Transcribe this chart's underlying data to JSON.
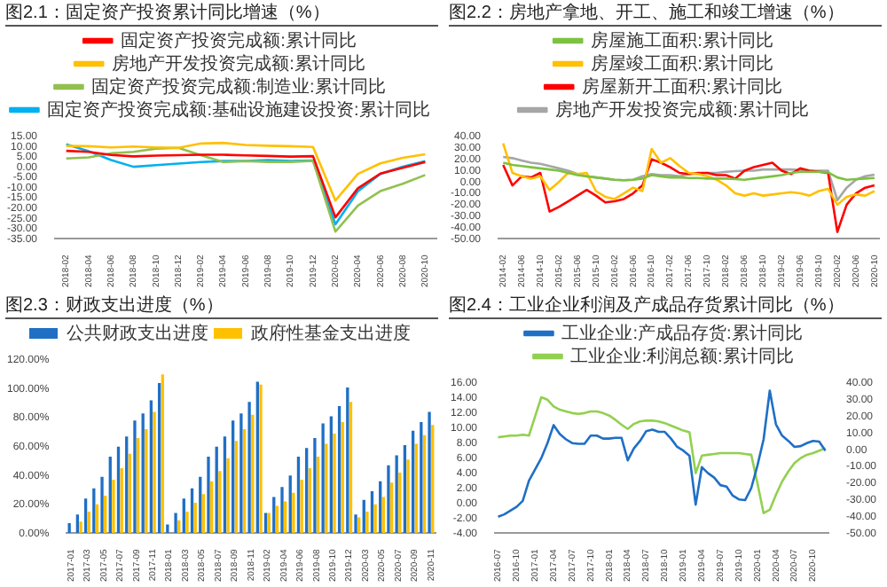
{
  "chart_data": [
    {
      "type": "line",
      "title": "图2.1：固定资产投资累计同比增速（%）",
      "legend": "top",
      "categories": [
        "2018-02",
        "2018-04",
        "2018-06",
        "2018-08",
        "2018-10",
        "2018-12",
        "2019-02",
        "2019-04",
        "2019-06",
        "2019-08",
        "2019-10",
        "2019-12",
        "2020-02",
        "2020-04",
        "2020-06",
        "2020-08",
        "2020-10"
      ],
      "ylim": [
        -35,
        15
      ],
      "yticks": [
        {
          "value": 15,
          "label": "15.00"
        },
        {
          "value": 10,
          "label": "10.00"
        },
        {
          "value": 5,
          "label": "5.00"
        },
        {
          "value": 0,
          "label": "0.00"
        },
        {
          "value": -5,
          "label": "-5.00"
        },
        {
          "value": -10,
          "label": "-10.00"
        },
        {
          "value": -15,
          "label": "-15.00"
        },
        {
          "value": -20,
          "label": "-20.00"
        },
        {
          "value": -25,
          "label": "-25.00"
        },
        {
          "value": -30,
          "label": "-30.00"
        },
        {
          "value": -35,
          "label": "-35.00"
        }
      ],
      "series": [
        {
          "name": "固定资产投资完成额:累计同比",
          "color": "#ff0000",
          "values": [
            8.0,
            7.5,
            6.0,
            5.3,
            5.7,
            5.9,
            6.1,
            6.1,
            5.8,
            5.5,
            5.2,
            5.4,
            -24.5,
            -10.3,
            -3.1,
            -0.3,
            2.5
          ]
        },
        {
          "name": "房地产开发投资完成额:累计同比",
          "color": "#ffc000",
          "values": [
            10.4,
            10.3,
            9.7,
            10.1,
            9.7,
            9.5,
            11.6,
            11.9,
            10.9,
            10.5,
            10.3,
            9.9,
            -16.3,
            -3.3,
            1.9,
            4.6,
            6.3
          ]
        },
        {
          "name": "固定资产投资完成额:制造业:累计同比",
          "color": "#92c050",
          "values": [
            4.3,
            4.8,
            6.8,
            7.5,
            9.1,
            9.5,
            5.9,
            2.5,
            3.0,
            2.6,
            2.6,
            3.1,
            -31.5,
            -18.8,
            -11.7,
            -8.1,
            -3.8
          ]
        },
        {
          "name": "固定资产投资完成额:基础设施建设投资:累计同比",
          "color": "#00b0f0",
          "values": [
            11.2,
            7.8,
            3.5,
            0.2,
            1.0,
            1.8,
            2.5,
            3.0,
            3.0,
            3.5,
            3.0,
            3.3,
            -27.9,
            -11.8,
            -3.3,
            0.3,
            3.0
          ]
        }
      ]
    },
    {
      "type": "line",
      "title": "图2.2：房地产拿地、开工、施工和竣工增速（%）",
      "legend": "top",
      "categories": [
        "2014-02",
        null,
        "2014-06",
        null,
        "2014-10",
        null,
        "2015-02",
        null,
        "2015-06",
        null,
        "2015-10",
        null,
        "2016-02",
        null,
        "2016-06",
        null,
        "2016-10",
        null,
        "2017-02",
        null,
        "2017-06",
        null,
        "2017-10",
        null,
        "2018-02",
        null,
        "2018-06",
        null,
        "2018-10",
        null,
        "2019-02",
        null,
        "2019-06",
        null,
        "2019-10",
        null,
        "2020-02",
        null,
        "2020-06",
        null,
        "2020-10"
      ],
      "ylim": [
        -50,
        40
      ],
      "yticks": [
        {
          "value": 40,
          "label": "40.00"
        },
        {
          "value": 30,
          "label": "30.00"
        },
        {
          "value": 20,
          "label": "20.00"
        },
        {
          "value": 10,
          "label": "10.00"
        },
        {
          "value": 0,
          "label": "0.00"
        },
        {
          "value": -10,
          "label": "-10.00"
        },
        {
          "value": -20,
          "label": "-20.00"
        },
        {
          "value": -30,
          "label": "-30.00"
        },
        {
          "value": -40,
          "label": "-40.00"
        },
        {
          "value": -50,
          "label": "-50.00"
        }
      ],
      "series": [
        {
          "name": "房屋施工面积:累计同比",
          "color": "#7dc242",
          "values": [
            17,
            15,
            14,
            13,
            12,
            11,
            10,
            8,
            6,
            5,
            4,
            3,
            2,
            1.5,
            2,
            3,
            6,
            5,
            4,
            4,
            3.5,
            3.5,
            3,
            3,
            3,
            2.5,
            2,
            3,
            4,
            5,
            6,
            8,
            9,
            9,
            9,
            8.5,
            4,
            2,
            2.5,
            3,
            3.5
          ]
        },
        {
          "name": "房屋竣工面积:累计同比",
          "color": "#ffc000",
          "values": [
            34,
            8,
            5,
            3,
            5,
            -7,
            0,
            8,
            7,
            8,
            -8,
            -13,
            -15,
            -10,
            -5,
            -8,
            29,
            17,
            21,
            14,
            8,
            7,
            5,
            2,
            -3,
            -10,
            -12,
            -10,
            -12,
            -11,
            -10,
            -9,
            -10,
            -12,
            -8,
            -6,
            -20,
            -13,
            -11,
            -12,
            -8
          ]
        },
        {
          "name": "房屋新开工面积:累计同比",
          "color": "#ff0000",
          "values": [
            15,
            -3,
            5,
            4,
            8,
            -26,
            -22,
            -17,
            -12,
            -7,
            -12,
            -18,
            -17,
            -15,
            -10,
            -3,
            20,
            17,
            13,
            8,
            7,
            8,
            8,
            6,
            6,
            3,
            10,
            13,
            15,
            17,
            10,
            7,
            12,
            10,
            9,
            8,
            -44,
            -20,
            -10,
            -5,
            -3
          ]
        },
        {
          "name": "房地产开发投资完成额:累计同比",
          "color": "#a6a6a6",
          "values": [
            22,
            21,
            19,
            17,
            16,
            14,
            12,
            10,
            7,
            5,
            4,
            3,
            2,
            1.5,
            2,
            5,
            7,
            6,
            6,
            5,
            7,
            7,
            8,
            8,
            9,
            9.5,
            10,
            10,
            11,
            11,
            11,
            11,
            10.5,
            10,
            10,
            10,
            -16,
            -5,
            2,
            5,
            6.5
          ]
        }
      ]
    },
    {
      "type": "bar",
      "title": "图2.3：财政支出进度（%）",
      "legend": "top",
      "categories": [
        "2017-01",
        null,
        "2017-03",
        null,
        "2017-05",
        null,
        "2017-07",
        null,
        "2017-09",
        null,
        "2017-11",
        null,
        "2018-01",
        null,
        "2018-03",
        null,
        "2018-05",
        null,
        "2018-07",
        null,
        "2018-09",
        null,
        "2018-11",
        null,
        "2019-02",
        null,
        "2019-04",
        null,
        "2019-06",
        null,
        "2019-08",
        null,
        "2019-10",
        null,
        "2019-12",
        null,
        "2020-03",
        null,
        "2020-05",
        null,
        "2020-07",
        null,
        "2020-09",
        null,
        "2020-11"
      ],
      "ylim": [
        0,
        120
      ],
      "yticks": [
        {
          "value": 0,
          "label": "0.00%"
        },
        {
          "value": 20,
          "label": "20.00%"
        },
        {
          "value": 40,
          "label": "40.00%"
        },
        {
          "value": 60,
          "label": "60.00%"
        },
        {
          "value": 80,
          "label": "80.00%"
        },
        {
          "value": 100,
          "label": "100.00%"
        },
        {
          "value": 120,
          "label": "120.00%"
        }
      ],
      "series": [
        {
          "name": "公共财政支出进度",
          "color": "#1f6fc5",
          "values": [
            7,
            13,
            24,
            31,
            39,
            53,
            60,
            67,
            78,
            83,
            92,
            104,
            6,
            14,
            24,
            31,
            39,
            53,
            60,
            67,
            78,
            83,
            91,
            105,
            14,
            25,
            32,
            40,
            53,
            59,
            66,
            76,
            81,
            88,
            101,
            13,
            23,
            29,
            36,
            47,
            54,
            61,
            71,
            77,
            84
          ]
        },
        {
          "name": "政府性基金支出进度",
          "color": "#ffc000",
          "values": [
            null,
            8,
            15,
            20,
            26,
            37,
            45,
            55,
            66,
            72,
            84,
            110,
            null,
            9,
            15,
            21,
            27,
            36,
            43,
            52,
            64,
            72,
            82,
            103,
            14,
            19,
            22,
            28,
            37,
            45,
            53,
            62,
            69,
            77,
            91,
            11,
            15,
            20,
            25,
            35,
            42,
            51,
            62,
            68,
            75
          ]
        }
      ]
    },
    {
      "type": "line",
      "title": "图2.4：工业企业利润及产成品存货累计同比（%）",
      "legend": "top",
      "categories": [
        "2016-07",
        null,
        null,
        "2016-10",
        null,
        null,
        "2017-01",
        null,
        null,
        "2017-04",
        null,
        null,
        "2017-07",
        null,
        null,
        "2017-10",
        null,
        null,
        "2018-01",
        null,
        null,
        "2018-04",
        null,
        null,
        "2018-07",
        null,
        null,
        "2018-10",
        null,
        null,
        "2019-01",
        null,
        null,
        "2019-04",
        null,
        null,
        "2019-07",
        null,
        null,
        "2019-10",
        null,
        null,
        "2020-01",
        null,
        null,
        "2020-04",
        null,
        null,
        "2020-07",
        null,
        null,
        "2020-10",
        null,
        null
      ],
      "ylim": [
        -4,
        16
      ],
      "yticks": [
        {
          "value": 16,
          "label": "16.00"
        },
        {
          "value": 14,
          "label": "14.00"
        },
        {
          "value": 12,
          "label": "12.00"
        },
        {
          "value": 10,
          "label": "10.00"
        },
        {
          "value": 8,
          "label": "8.00"
        },
        {
          "value": 6,
          "label": "6.00"
        },
        {
          "value": 4,
          "label": "4.00"
        },
        {
          "value": 2,
          "label": "2.00"
        },
        {
          "value": 0,
          "label": "0.00"
        },
        {
          "value": -2,
          "label": "-2.00"
        },
        {
          "value": -4,
          "label": "-4.00"
        }
      ],
      "y2lim": [
        -50,
        40
      ],
      "y2ticks": [
        {
          "value": 40,
          "label": "40.00"
        },
        {
          "value": 30,
          "label": "30.00"
        },
        {
          "value": 20,
          "label": "20.00"
        },
        {
          "value": 10,
          "label": "10.00"
        },
        {
          "value": 0,
          "label": "0.00"
        },
        {
          "value": -10,
          "label": "-10.00"
        },
        {
          "value": -20,
          "label": "-20.00"
        },
        {
          "value": -30,
          "label": "-30.00"
        },
        {
          "value": -40,
          "label": "-40.00"
        },
        {
          "value": -50,
          "label": "-50.00"
        }
      ],
      "series": [
        {
          "name": "工业企业:产成品存货:累计同比",
          "color": "#1f6fc5",
          "values": [
            -1.8,
            -1.5,
            -1.0,
            -0.5,
            0.3,
            3.0,
            4.5,
            6.0,
            8.0,
            10.4,
            9.2,
            8.5,
            8.0,
            7.9,
            7.9,
            9.0,
            9.0,
            8.6,
            8.6,
            8.7,
            8.7,
            5.7,
            7.3,
            8.3,
            9.6,
            9.8,
            9.5,
            9.5,
            8.6,
            7.5,
            7.0,
            6.3,
            -0.2,
            4.8,
            4.0,
            3.4,
            2.4,
            2.2,
            1.0,
            0.5,
            0.4,
            2.0,
            5.0,
            8.5,
            15.0,
            10.5,
            9.0,
            8.3,
            7.5,
            7.6,
            8.0,
            8.3,
            8.2,
            7.0
          ]
        },
        {
          "name": "工业企业:利润总额:累计同比",
          "color": "#92d050",
          "axis": "y2",
          "values": [
            7.5,
            8.0,
            8.5,
            8.5,
            9.0,
            8.5,
            20.0,
            31.5,
            30.0,
            26.0,
            24.0,
            23.0,
            22.0,
            21.5,
            22.0,
            23.0,
            23.0,
            22.0,
            20.5,
            18.0,
            15.0,
            12.5,
            15.5,
            17.0,
            17.5,
            17.5,
            17.0,
            16.0,
            14.5,
            13.0,
            11.5,
            10.5,
            -14.0,
            -3.5,
            -3.0,
            -2.5,
            -2.0,
            -2.0,
            -2.0,
            -2.0,
            -2.5,
            -3.0,
            -20.0,
            -38.0,
            -36.0,
            -27.0,
            -19.0,
            -13.0,
            -8.0,
            -5.0,
            -3.0,
            -2.0,
            -0.5,
            1.0
          ]
        }
      ]
    }
  ]
}
